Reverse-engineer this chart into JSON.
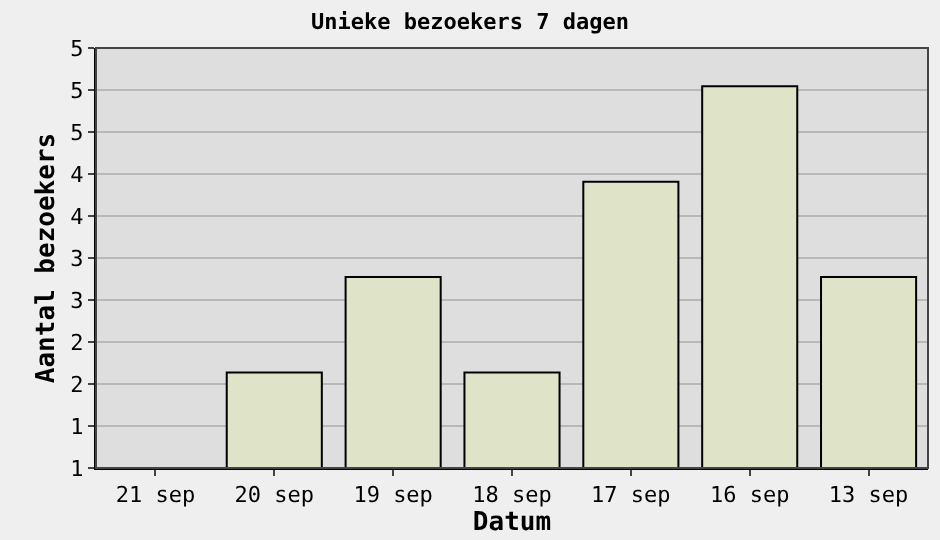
{
  "chart_data": {
    "type": "bar",
    "title": "Unieke bezoekers 7 dagen",
    "xlabel": "Datum",
    "ylabel": "Aantal bezoekers",
    "categories": [
      "21 sep",
      "20 sep",
      "19 sep",
      "18 sep",
      "17 sep",
      "16 sep",
      "13 sep"
    ],
    "values": [
      1,
      2,
      3,
      2,
      4,
      5,
      3
    ],
    "color": "#dfe3c8",
    "ylim": [
      1,
      5.4
    ],
    "yticks": [
      {
        "value": 1,
        "label": "1"
      },
      {
        "value": 1.44,
        "label": "1"
      },
      {
        "value": 1.88,
        "label": "2"
      },
      {
        "value": 2.32,
        "label": "2"
      },
      {
        "value": 2.76,
        "label": "3"
      },
      {
        "value": 3.2,
        "label": "3"
      },
      {
        "value": 3.64,
        "label": "4"
      },
      {
        "value": 4.08,
        "label": "4"
      },
      {
        "value": 4.52,
        "label": "5"
      },
      {
        "value": 4.96,
        "label": "5"
      },
      {
        "value": 5.4,
        "label": "5"
      }
    ],
    "grid": "y"
  }
}
